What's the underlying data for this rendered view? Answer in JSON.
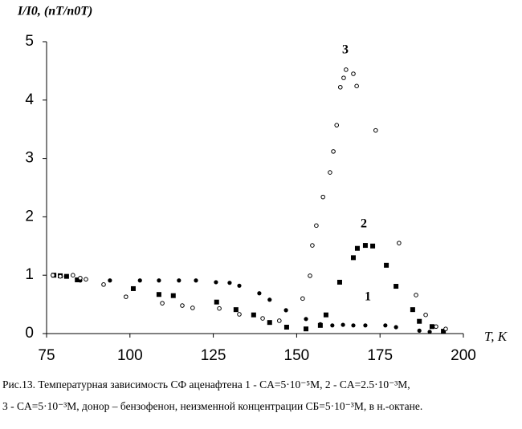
{
  "chart_data": {
    "type": "scatter",
    "y_label": "I/I0, (nT/n0T)",
    "x_label": "T, K",
    "annotations": [
      "3",
      "2",
      "1"
    ],
    "caption": [
      "Рис.13. Температурная зависимость СФ аценафтена 1 - CА=5·10⁻⁵M, 2 - CА=2.5·10⁻³M,",
      "3 - CА=5·10⁻³M, донор – бензофенон, неизменной концентрации CБ=5·10⁻³M,  в н.-октане."
    ],
    "xlim": [
      75,
      200
    ],
    "xticks": [
      75,
      100,
      125,
      150,
      175,
      200
    ],
    "ylim": [
      0,
      5
    ],
    "yticks": [
      0,
      1,
      2,
      3,
      4,
      5
    ],
    "grid": false,
    "series": [
      {
        "name": "1",
        "color": "#000000",
        "marker": "circle-filled",
        "x": [
          76.9,
          80.8,
          85.1,
          94.0,
          103,
          108.7,
          114.7,
          119.8,
          125.8,
          129.9,
          132.8,
          138.8,
          141.9,
          146.8,
          152.8,
          157.1,
          160.7,
          163.9,
          167,
          170.6,
          176.6,
          179.8,
          186.8,
          189.9
        ],
        "values": [
          1.0,
          0.98,
          0.91,
          0.91,
          0.91,
          0.91,
          0.91,
          0.91,
          0.88,
          0.87,
          0.82,
          0.69,
          0.58,
          0.4,
          0.25,
          0.16,
          0.14,
          0.15,
          0.14,
          0.14,
          0.14,
          0.11,
          0.05,
          0.03
        ]
      },
      {
        "name": "2",
        "color": "#000000",
        "marker": "square",
        "x": [
          77.2,
          79.1,
          81,
          84.2,
          101,
          108.7,
          113,
          126,
          131.8,
          137.1,
          141.9,
          147,
          152.8,
          157.1,
          158.8,
          162.9,
          167,
          168.2,
          170.6,
          172.8,
          176.9,
          179.8,
          184.8,
          186.8,
          190.6,
          194
        ],
        "values": [
          1.0,
          0.99,
          0.98,
          0.92,
          0.77,
          0.67,
          0.65,
          0.54,
          0.41,
          0.32,
          0.19,
          0.11,
          0.08,
          0.14,
          0.32,
          0.88,
          1.3,
          1.46,
          1.51,
          1.5,
          1.17,
          0.81,
          0.41,
          0.21,
          0.12,
          0.04
        ]
      },
      {
        "name": "3",
        "color": "#000000",
        "marker": "circle-open",
        "x": [
          76.9,
          79.1,
          82.9,
          85.1,
          86.8,
          92.1,
          98.8,
          109.7,
          115.7,
          118.8,
          126.8,
          132.8,
          139.8,
          144.8,
          151.8,
          154,
          154.7,
          155.9,
          157.9,
          160,
          161,
          162,
          163.1,
          164.1,
          164.8,
          167,
          168,
          173.7,
          180.7,
          185.8,
          188.7,
          191.8,
          194.7
        ],
        "values": [
          1.0,
          0.98,
          1.0,
          0.95,
          0.93,
          0.84,
          0.63,
          0.52,
          0.48,
          0.44,
          0.43,
          0.33,
          0.26,
          0.22,
          0.6,
          0.99,
          1.51,
          1.85,
          2.34,
          2.76,
          3.12,
          3.57,
          4.22,
          4.38,
          4.52,
          4.45,
          4.24,
          3.48,
          1.55,
          0.66,
          0.32,
          0.12,
          0.08
        ]
      }
    ]
  }
}
